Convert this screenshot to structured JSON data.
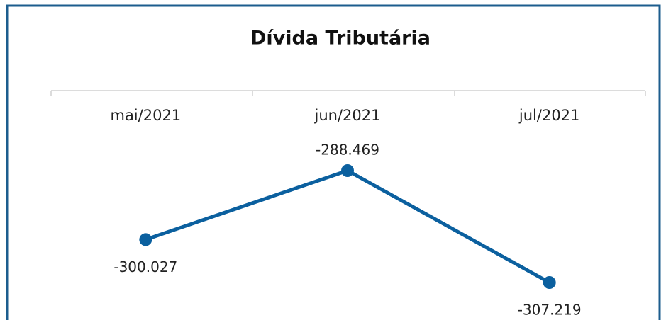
{
  "chart_data": {
    "type": "line",
    "title": "Dívida Tributária",
    "categories": [
      "mai/2021",
      "jun/2021",
      "jul/2021"
    ],
    "series": [
      {
        "name": "Dívida Tributária",
        "color": "#0b609f",
        "values": [
          -300027,
          -288469,
          -307219
        ],
        "value_labels": [
          "-300.027",
          "-288.469",
          "-307.219"
        ]
      }
    ]
  }
}
